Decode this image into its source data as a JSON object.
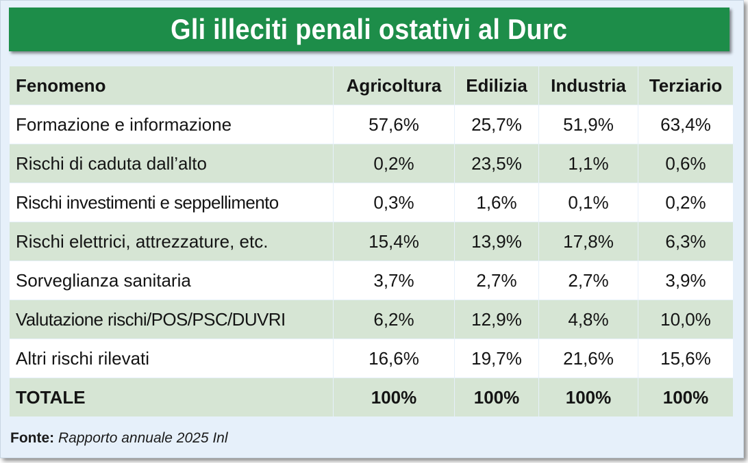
{
  "title": "Gli illeciti penali ostativi al Durc",
  "table": {
    "headers": [
      "Fenomeno",
      "Agricoltura",
      "Edilizia",
      "Industria",
      "Terziario"
    ],
    "rows": [
      [
        "Formazione e informazione",
        "57,6%",
        "25,7%",
        "51,9%",
        "63,4%"
      ],
      [
        "Rischi di caduta dall’alto",
        "0,2%",
        "23,5%",
        "1,1%",
        "0,6%"
      ],
      [
        "Rischi investimenti e seppellimento",
        "0,3%",
        "1,6%",
        "0,1%",
        "0,2%"
      ],
      [
        "Rischi elettrici, attrezzature, etc.",
        "15,4%",
        "13,9%",
        "17,8%",
        "6,3%"
      ],
      [
        "Sorveglianza sanitaria",
        "3,7%",
        "2,7%",
        "2,7%",
        "3,9%"
      ],
      [
        "Valutazione rischi/POS/PSC/DUVRI",
        "6,2%",
        "12,9%",
        "4,8%",
        "10,0%"
      ],
      [
        "Altri rischi rilevati",
        "16,6%",
        "19,7%",
        "21,6%",
        "15,6%"
      ],
      [
        "TOTALE",
        "100%",
        "100%",
        "100%",
        "100%"
      ]
    ]
  },
  "source": {
    "label": "Fonte:",
    "text": "Rapporto annuale 2025 Inl"
  },
  "colors": {
    "title_bg": "#1d8d49",
    "band_green": "#d6e5d4",
    "card_bg": "#e6f0fa"
  }
}
